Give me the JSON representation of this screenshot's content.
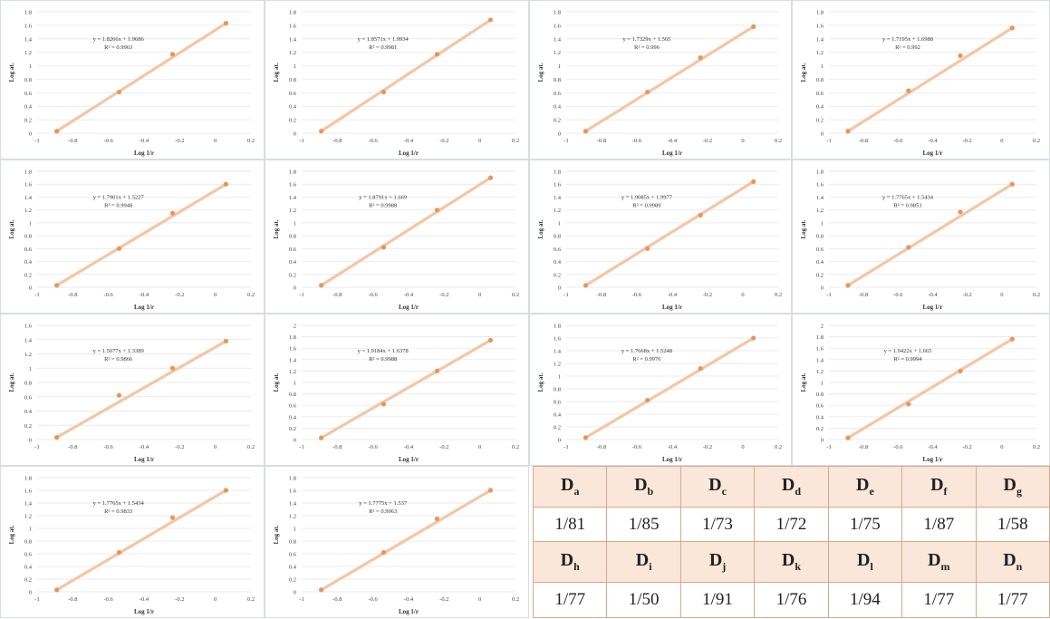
{
  "charts": [
    {
      "eq": "y = 1.8266x + 1.9686",
      "r2": "R² = 0.9963",
      "yticks": [
        "1.8",
        "1.6",
        "1.4",
        "1.2",
        "1",
        "0.8",
        "0.6",
        "0.4",
        "0.2",
        "0"
      ],
      "ylim": [
        0,
        1.8
      ],
      "points": [
        [
          -0.89,
          0.03
        ],
        [
          -0.54,
          0.61
        ],
        [
          -0.24,
          1.17
        ],
        [
          0.06,
          1.63
        ]
      ]
    },
    {
      "eq": "y = 1.8571x + 1.9934",
      "r2": "R² = 0.9981",
      "yticks": [
        "1.8",
        "1.6",
        "1.4",
        "1.2",
        "1",
        "0.8",
        "0.6",
        "0.4",
        "0.2",
        "0"
      ],
      "ylim": [
        0,
        1.8
      ],
      "points": [
        [
          -0.89,
          0.03
        ],
        [
          -0.54,
          0.61
        ],
        [
          -0.24,
          1.17
        ],
        [
          0.06,
          1.68
        ]
      ]
    },
    {
      "eq": "y = 1.7329x + 1.565",
      "r2": "R² = 0.996",
      "yticks": [
        "1.8",
        "1.6",
        "1.4",
        "1.2",
        "1",
        "0.8",
        "0.6",
        "0.4",
        "0.2",
        "0"
      ],
      "ylim": [
        0,
        1.8
      ],
      "points": [
        [
          -0.89,
          0.03
        ],
        [
          -0.54,
          0.61
        ],
        [
          -0.24,
          1.12
        ],
        [
          0.06,
          1.58
        ]
      ]
    },
    {
      "eq": "y = 1.7195x + 1.6988",
      "r2": "R² = 0.992",
      "yticks": [
        "1.8",
        "1.6",
        "1.4",
        "1.2",
        "1",
        "0.8",
        "0.6",
        "0.4",
        "0.2",
        "0"
      ],
      "ylim": [
        0,
        1.8
      ],
      "points": [
        [
          -0.89,
          0.03
        ],
        [
          -0.54,
          0.63
        ],
        [
          -0.24,
          1.15
        ],
        [
          0.06,
          1.56
        ]
      ]
    },
    {
      "eq": "y = 1.7901x + 1.5227",
      "r2": "R² = 0.9948",
      "yticks": [
        "1.8",
        "1.6",
        "1.4",
        "1.2",
        "1",
        "0.8",
        "0.6",
        "0.4",
        "0.2",
        "0"
      ],
      "ylim": [
        0,
        1.8
      ],
      "points": [
        [
          -0.89,
          0.03
        ],
        [
          -0.54,
          0.6
        ],
        [
          -0.24,
          1.15
        ],
        [
          0.06,
          1.6
        ]
      ]
    },
    {
      "eq": "y = 1.8791x + 1.669",
      "r2": "R² = 0.9988",
      "yticks": [
        "1.8",
        "1.6",
        "1.4",
        "1.2",
        "1",
        "0.8",
        "0.6",
        "0.4",
        "0.2",
        "0"
      ],
      "ylim": [
        0,
        1.8
      ],
      "points": [
        [
          -0.89,
          0.03
        ],
        [
          -0.54,
          0.62
        ],
        [
          -0.24,
          1.2
        ],
        [
          0.06,
          1.7
        ]
      ]
    },
    {
      "eq": "y = 1.9085x + 1.9977",
      "r2": "R² = 0.9989",
      "yticks": [
        "1.8",
        "1.6",
        "1.4",
        "1.2",
        "1",
        "0.8",
        "0.6",
        "0.4",
        "0.2",
        "0"
      ],
      "ylim": [
        0,
        1.8
      ],
      "points": [
        [
          -0.89,
          0.03
        ],
        [
          -0.54,
          0.6
        ],
        [
          -0.24,
          1.12
        ],
        [
          0.06,
          1.64
        ]
      ]
    },
    {
      "eq": "y = 1.7765x + 1.5434",
      "r2": "R² = 0.9853",
      "yticks": [
        "1.8",
        "1.6",
        "1.4",
        "1.2",
        "1",
        "0.8",
        "0.6",
        "0.4",
        "0.2",
        "0"
      ],
      "ylim": [
        0,
        1.8
      ],
      "points": [
        [
          -0.89,
          0.03
        ],
        [
          -0.54,
          0.62
        ],
        [
          -0.24,
          1.17
        ],
        [
          0.06,
          1.6
        ]
      ]
    },
    {
      "eq": "y = 1.5077x + 1.3389",
      "r2": "R² = 0.9866",
      "yticks": [
        "1.6",
        "1.4",
        "1.2",
        "1",
        "0.8",
        "0.6",
        "0.4",
        "0.2",
        "0"
      ],
      "ylim": [
        0,
        1.6
      ],
      "points": [
        [
          -0.89,
          0.03
        ],
        [
          -0.54,
          0.62
        ],
        [
          -0.24,
          1.0
        ],
        [
          0.06,
          1.38
        ]
      ]
    },
    {
      "eq": "y = 1.9184x + 1.6378",
      "r2": "R² = 0.9988",
      "yticks": [
        "2",
        "1.8",
        "1.6",
        "1.4",
        "1.2",
        "1",
        "0.8",
        "0.6",
        "0.4",
        "0.2",
        "0"
      ],
      "ylim": [
        0,
        2
      ],
      "points": [
        [
          -0.89,
          0.03
        ],
        [
          -0.54,
          0.62
        ],
        [
          -0.24,
          1.2
        ],
        [
          0.06,
          1.74
        ]
      ]
    },
    {
      "eq": "y = 1.7668x + 1.5248",
      "r2": "R² = 0.9976",
      "yticks": [
        "1.8",
        "1.6",
        "1.4",
        "1.2",
        "1",
        "0.8",
        "0.6",
        "0.4",
        "0.2",
        "0"
      ],
      "ylim": [
        0,
        1.8
      ],
      "points": [
        [
          -0.89,
          0.03
        ],
        [
          -0.54,
          0.62
        ],
        [
          -0.24,
          1.12
        ],
        [
          0.06,
          1.6
        ]
      ]
    },
    {
      "eq": "y = 1.9422x + 1.665",
      "r2": "R² = 0.9994",
      "yticks": [
        "2",
        "1.8",
        "1.6",
        "1.4",
        "1.2",
        "1",
        "0.8",
        "0.6",
        "0.4",
        "0.2",
        "0"
      ],
      "ylim": [
        0,
        2
      ],
      "points": [
        [
          -0.89,
          0.03
        ],
        [
          -0.54,
          0.62
        ],
        [
          -0.24,
          1.2
        ],
        [
          0.06,
          1.76
        ]
      ]
    },
    {
      "eq": "y = 1.7765x + 1.5434",
      "r2": "R² = 0.9833",
      "yticks": [
        "1.8",
        "1.6",
        "1.4",
        "1.2",
        "1",
        "0.8",
        "0.6",
        "0.4",
        "0.2",
        "0"
      ],
      "ylim": [
        0,
        1.8
      ],
      "points": [
        [
          -0.89,
          0.03
        ],
        [
          -0.54,
          0.62
        ],
        [
          -0.24,
          1.17
        ],
        [
          0.06,
          1.6
        ]
      ]
    },
    {
      "eq": "y = 1.7775x + 1.537",
      "r2": "R² = 0.9963",
      "yticks": [
        "1.8",
        "1.6",
        "1.4",
        "1.2",
        "1",
        "0.8",
        "0.6",
        "0.4",
        "0.2",
        "0"
      ],
      "ylim": [
        0,
        1.8
      ],
      "points": [
        [
          -0.89,
          0.03
        ],
        [
          -0.54,
          0.62
        ],
        [
          -0.24,
          1.15
        ],
        [
          0.06,
          1.6
        ]
      ]
    }
  ],
  "common": {
    "xlabel": "Log 1/r",
    "ylabel": "Log at.",
    "xticks": [
      "-1",
      "-0.8",
      "-0.6",
      "-0.4",
      "-0.2",
      "0",
      "0.2"
    ],
    "xlim": [
      -1,
      0.2
    ],
    "point_color": "#e8955c",
    "line_color": "#f3c6a6"
  },
  "table": {
    "headers1": [
      [
        "D",
        "a"
      ],
      [
        "D",
        "b"
      ],
      [
        "D",
        "c"
      ],
      [
        "D",
        "d"
      ],
      [
        "D",
        "e"
      ],
      [
        "D",
        "f"
      ],
      [
        "D",
        "g"
      ]
    ],
    "values1": [
      "1/81",
      "1/85",
      "1/73",
      "1/72",
      "1/75",
      "1/87",
      "1/58"
    ],
    "headers2": [
      [
        "D",
        "h"
      ],
      [
        "D",
        "i"
      ],
      [
        "D",
        "j"
      ],
      [
        "D",
        "k"
      ],
      [
        "D",
        "l"
      ],
      [
        "D",
        "m"
      ],
      [
        "D",
        "n"
      ]
    ],
    "values2": [
      "1/77",
      "1/50",
      "1/91",
      "1/76",
      "1/94",
      "1/77",
      "1/77"
    ]
  }
}
